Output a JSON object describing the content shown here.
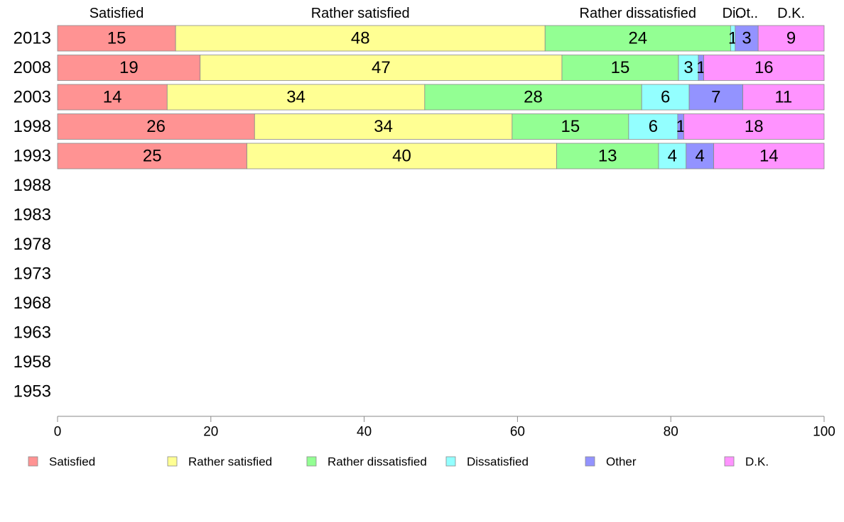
{
  "chart_data": {
    "type": "bar",
    "orientation": "horizontal",
    "stacked": true,
    "categories": [
      "2013",
      "2008",
      "2003",
      "1998",
      "1993",
      "1988",
      "1983",
      "1978",
      "1973",
      "1968",
      "1963",
      "1958",
      "1953"
    ],
    "series": [
      {
        "name": "Satisfied",
        "color": "#ff9393",
        "values": [
          15.4,
          18.6,
          14.3,
          25.7,
          24.7,
          null,
          null,
          null,
          null,
          null,
          null,
          null,
          null
        ],
        "labels": [
          "15",
          "19",
          "14",
          "26",
          "25",
          "",
          "",
          "",
          "",
          "",
          "",
          "",
          ""
        ]
      },
      {
        "name": "Rather satisfied",
        "color": "#ffff93",
        "values": [
          48.2,
          47.2,
          33.6,
          33.6,
          40.4,
          null,
          null,
          null,
          null,
          null,
          null,
          null,
          null
        ],
        "labels": [
          "48",
          "47",
          "34",
          "34",
          "40",
          "",
          "",
          "",
          "",
          "",
          "",
          "",
          ""
        ]
      },
      {
        "name": "Rather dissatisfied",
        "color": "#93ff93",
        "values": [
          24.2,
          15.2,
          28.3,
          15.2,
          13.3,
          null,
          null,
          null,
          null,
          null,
          null,
          null,
          null
        ],
        "labels": [
          "24",
          "15",
          "28",
          "15",
          "13",
          "",
          "",
          "",
          "",
          "",
          "",
          "",
          ""
        ]
      },
      {
        "name": "Dissatisfied",
        "color": "#93ffff",
        "values": [
          0.6,
          2.6,
          6.2,
          6.4,
          3.6,
          null,
          null,
          null,
          null,
          null,
          null,
          null,
          null
        ],
        "labels": [
          "1",
          "3",
          "6",
          "6",
          "4",
          "",
          "",
          "",
          "",
          "",
          "",
          "",
          ""
        ]
      },
      {
        "name": "Other",
        "color": "#9393ff",
        "values": [
          3.0,
          0.7,
          7.0,
          0.8,
          3.6,
          null,
          null,
          null,
          null,
          null,
          null,
          null,
          null
        ],
        "labels": [
          "3",
          "1",
          "7",
          "1",
          "4",
          "",
          "",
          "",
          "",
          "",
          "",
          "",
          ""
        ]
      },
      {
        "name": "D.K.",
        "color": "#ff93ff",
        "values": [
          8.6,
          15.7,
          10.6,
          18.3,
          14.4,
          null,
          null,
          null,
          null,
          null,
          null,
          null,
          null
        ],
        "labels": [
          "9",
          "16",
          "11",
          "18",
          "14",
          "",
          "",
          "",
          "",
          "",
          "",
          "",
          ""
        ]
      }
    ],
    "column_headers": [
      "Satisfied",
      "Rather satisfied",
      "Rather dissatisfied",
      "Di..",
      "Ot..",
      "D.K."
    ],
    "xlim": [
      0,
      100
    ],
    "xticks": [
      "0",
      "20",
      "40",
      "60",
      "80",
      "100"
    ],
    "grid": false,
    "legend": "bottom"
  }
}
